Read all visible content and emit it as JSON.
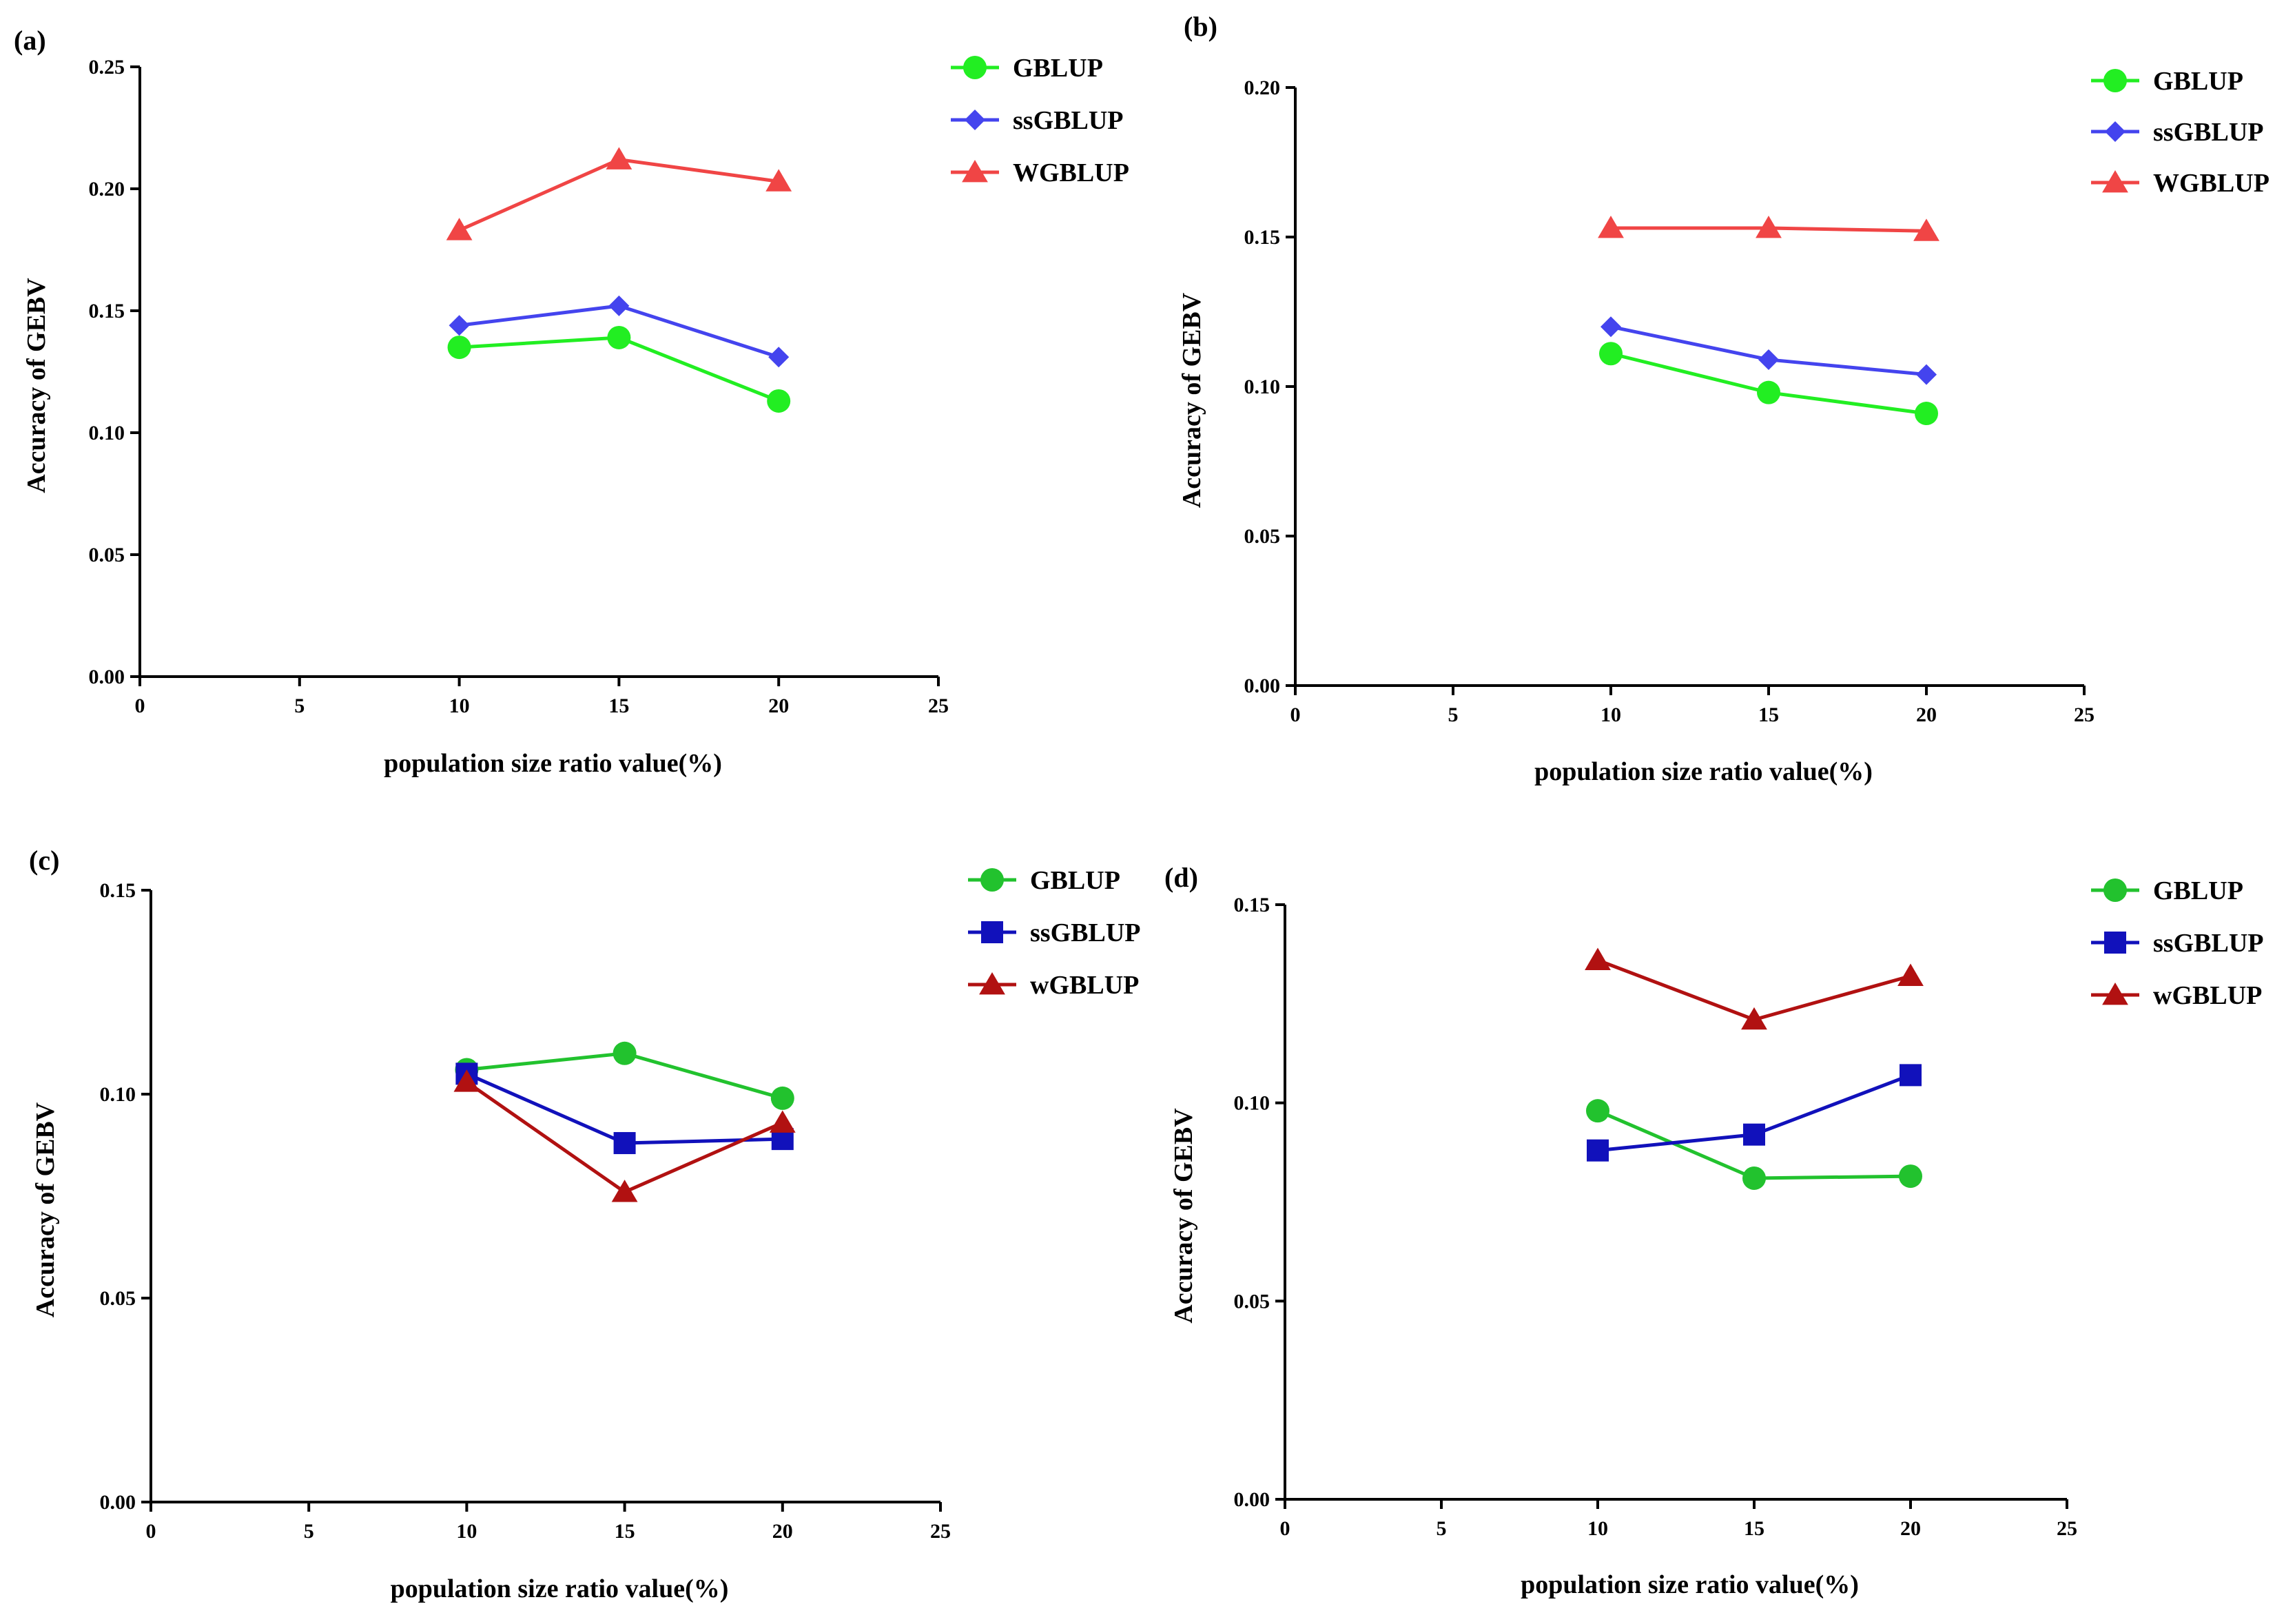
{
  "figure": {
    "title": ""
  },
  "chart_data": [
    {
      "type": "line",
      "panel_label": "(a)",
      "xlabel": "population size ratio value(%)",
      "ylabel": "Accuracy of GEBV",
      "xlim": [
        0,
        25
      ],
      "ylim": [
        0,
        0.25
      ],
      "x_ticks": [
        0,
        5,
        10,
        15,
        20,
        25
      ],
      "y_ticks": [
        "0.00",
        "0.05",
        "0.10",
        "0.15",
        "0.20",
        "0.25"
      ],
      "x": [
        10,
        15,
        20
      ],
      "grid": false,
      "legend_position": "top-right",
      "series": [
        {
          "name": "GBLUP",
          "values": [
            0.135,
            0.139,
            0.113
          ],
          "color": "#22ee22",
          "marker": "circle"
        },
        {
          "name": "ssGBLUP",
          "values": [
            0.144,
            0.152,
            0.131
          ],
          "color": "#4444ee",
          "marker": "diamond"
        },
        {
          "name": "WGBLUP",
          "values": [
            0.183,
            0.212,
            0.203
          ],
          "color": "#f04545",
          "marker": "triangle"
        }
      ]
    },
    {
      "type": "line",
      "panel_label": "(b)",
      "xlabel": "population size ratio value(%)",
      "ylabel": "Accuracy of GEBV",
      "xlim": [
        0,
        25
      ],
      "ylim": [
        0,
        0.2
      ],
      "x_ticks": [
        0,
        5,
        10,
        15,
        20,
        25
      ],
      "y_ticks": [
        "0.00",
        "0.05",
        "0.10",
        "0.15",
        "0.20"
      ],
      "x": [
        10,
        15,
        20
      ],
      "grid": false,
      "legend_position": "top-right",
      "series": [
        {
          "name": "GBLUP",
          "values": [
            0.111,
            0.098,
            0.091
          ],
          "color": "#22ee22",
          "marker": "circle"
        },
        {
          "name": "ssGBLUP",
          "values": [
            0.12,
            0.109,
            0.104
          ],
          "color": "#4444ee",
          "marker": "diamond"
        },
        {
          "name": "WGBLUP",
          "values": [
            0.153,
            0.153,
            0.152
          ],
          "color": "#f04545",
          "marker": "triangle"
        }
      ]
    },
    {
      "type": "line",
      "panel_label": "(c)",
      "xlabel": "population size ratio value(%)",
      "ylabel": "Accuracy of GEBV",
      "xlim": [
        0,
        25
      ],
      "ylim": [
        0,
        0.15
      ],
      "x_ticks": [
        0,
        5,
        10,
        15,
        20,
        25
      ],
      "y_ticks": [
        "0.00",
        "0.05",
        "0.10",
        "0.15"
      ],
      "x": [
        10,
        15,
        20
      ],
      "grid": false,
      "legend_position": "top-right",
      "series": [
        {
          "name": "GBLUP",
          "values": [
            0.106,
            0.11,
            0.099
          ],
          "color": "#22c22e",
          "marker": "circle"
        },
        {
          "name": "ssGBLUP",
          "values": [
            0.105,
            0.088,
            0.089
          ],
          "color": "#1111bb",
          "marker": "square"
        },
        {
          "name": "wGBLUP",
          "values": [
            0.103,
            0.076,
            0.093
          ],
          "color": "#b11111",
          "marker": "triangle"
        }
      ]
    },
    {
      "type": "line",
      "panel_label": "(d)",
      "xlabel": "population size ratio value(%)",
      "ylabel": "Accuracy of GEBV",
      "xlim": [
        0,
        25
      ],
      "ylim": [
        0,
        0.15
      ],
      "x_ticks": [
        0,
        5,
        10,
        15,
        20,
        25
      ],
      "y_ticks": [
        "0.00",
        "0.05",
        "0.10",
        "0.15"
      ],
      "x": [
        10,
        15,
        20
      ],
      "grid": false,
      "legend_position": "top-right",
      "series": [
        {
          "name": "GBLUP",
          "values": [
            0.098,
            0.081,
            0.0815
          ],
          "color": "#22c22e",
          "marker": "circle"
        },
        {
          "name": "ssGBLUP",
          "values": [
            0.088,
            0.092,
            0.107
          ],
          "color": "#1111bb",
          "marker": "square"
        },
        {
          "name": "wGBLUP",
          "values": [
            0.136,
            0.121,
            0.132
          ],
          "color": "#b11111",
          "marker": "triangle"
        }
      ]
    }
  ]
}
